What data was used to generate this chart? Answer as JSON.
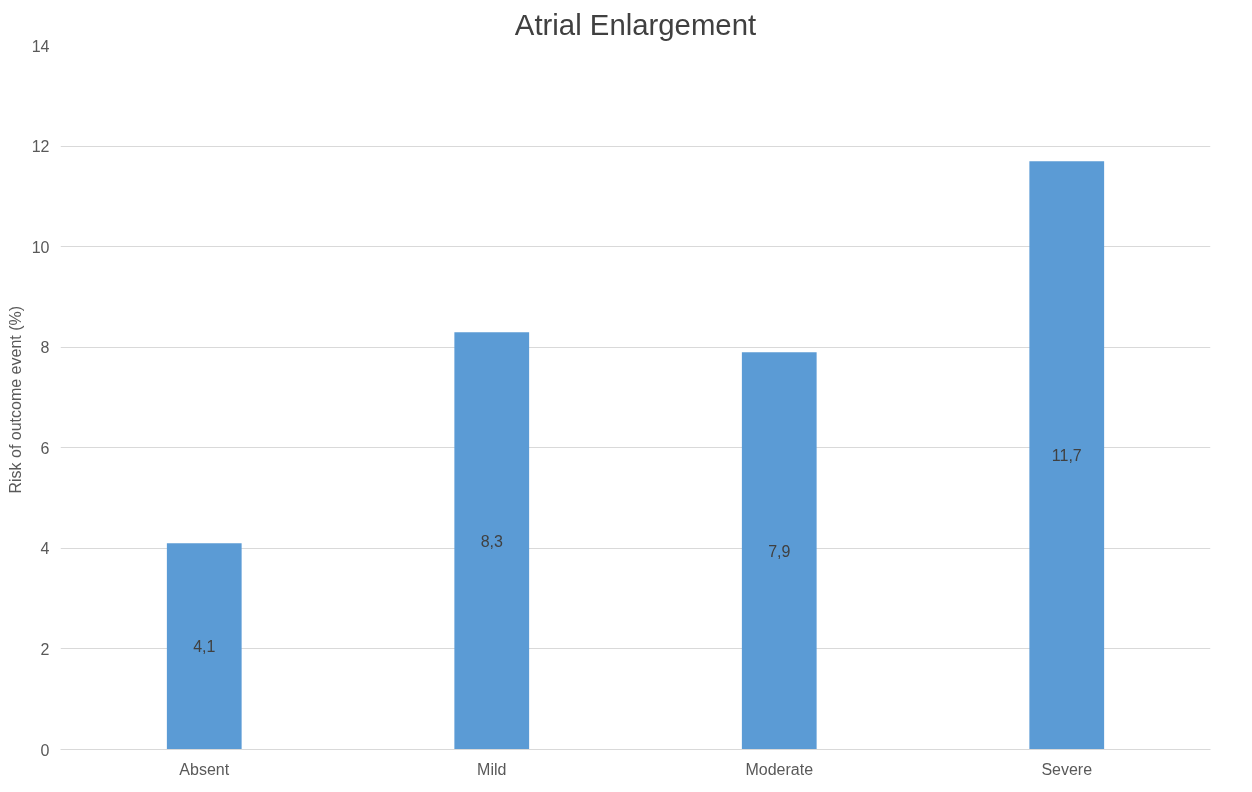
{
  "chart_data": {
    "type": "bar",
    "title": "Atrial Enlargement",
    "ylabel": "Risk of outcome event  (%)",
    "categories": [
      "Absent",
      "Mild",
      "Moderate",
      "Severe"
    ],
    "values": [
      4.1,
      8.3,
      7.9,
      11.7
    ],
    "value_labels": [
      "4,1",
      "8,3",
      "7,9",
      "11,7"
    ],
    "color": "#5b9bd5",
    "ylim": [
      0,
      14
    ],
    "yticks": [
      0,
      2,
      4,
      6,
      8,
      10,
      12,
      14
    ],
    "grid": "y"
  }
}
